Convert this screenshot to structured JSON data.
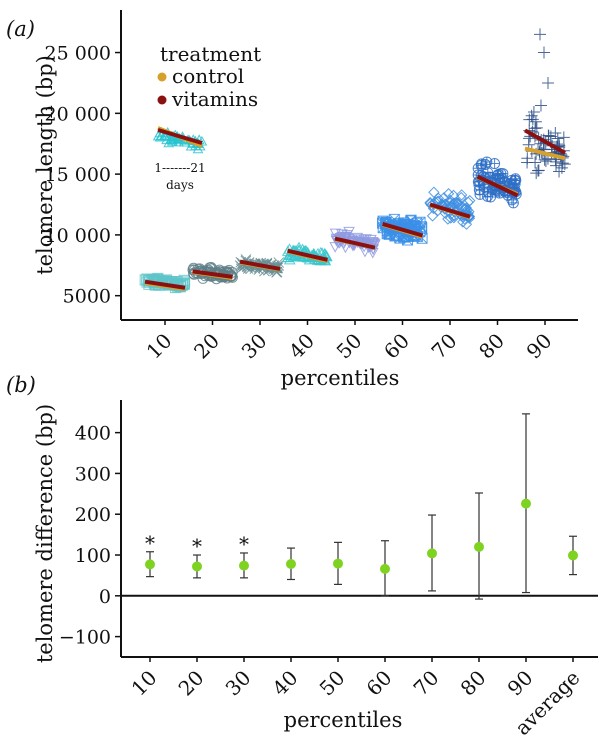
{
  "panels": {
    "a_label": "(a)",
    "b_label": "(b)"
  },
  "colors": {
    "control": "#d7a02a",
    "vitamins": "#8b1010",
    "point": "#7ed321",
    "axis": "#111111"
  },
  "chart_data": [
    {
      "panel": "a",
      "type": "scatter",
      "xlabel": "percentiles",
      "ylabel": "telomere length (bp)",
      "categories": [
        "10",
        "20",
        "30",
        "40",
        "50",
        "60",
        "70",
        "80",
        "90"
      ],
      "yticks": [
        5000,
        10000,
        15000,
        20000,
        25000
      ],
      "ytick_labels": [
        "5000",
        "10 000",
        "15 000",
        "20 000",
        "25 000"
      ],
      "ylim": [
        3000,
        28500
      ],
      "legend": {
        "title": "treatment",
        "entries": [
          "control",
          "vitamins"
        ],
        "inset_xlabel": "1-------21",
        "inset_unit": "days",
        "position": "top-left"
      },
      "x_encoding": "days 1–21 within each percentile group",
      "series": [
        {
          "name": "control",
          "start": [
            6050,
            6950,
            7750,
            8650,
            9650,
            10850,
            12450,
            14750,
            17100
          ],
          "end": [
            5550,
            6450,
            7150,
            7850,
            8950,
            9850,
            11450,
            13350,
            16300
          ]
        },
        {
          "name": "vitamins",
          "start": [
            6150,
            7000,
            7800,
            8700,
            9700,
            10900,
            12500,
            14800,
            18600
          ],
          "end": [
            5650,
            6550,
            7200,
            7950,
            8950,
            9950,
            11500,
            13250,
            16750
          ]
        }
      ],
      "group_markers": [
        "square",
        "circle",
        "cross",
        "triangle",
        "down-triangle",
        "square-x",
        "diamond",
        "circle-plus",
        "plus"
      ],
      "group_colors": [
        "#5fc4c9",
        "#5f7f87",
        "#6a8f95",
        "#3ac6cc",
        "#8f9be0",
        "#3b8fe8",
        "#3e8ee0",
        "#2e6fc5",
        "#2b4e86"
      ],
      "group_spread": [
        [
          5700,
          6700
        ],
        [
          6200,
          7600
        ],
        [
          6800,
          8100
        ],
        [
          7500,
          9200
        ],
        [
          8600,
          10600
        ],
        [
          9200,
          12000
        ],
        [
          10500,
          14200
        ],
        [
          11500,
          16500
        ],
        [
          13000,
          21500
        ]
      ],
      "outliers": [
        26500,
        25000,
        22500
      ]
    },
    {
      "panel": "b",
      "type": "scatter",
      "xlabel": "percentiles",
      "ylabel": "telomere difference (bp)",
      "categories": [
        "10",
        "20",
        "30",
        "40",
        "50",
        "60",
        "70",
        "80",
        "90",
        "average"
      ],
      "values": [
        77,
        72,
        74,
        78,
        79,
        66,
        104,
        120,
        226,
        99
      ],
      "err_low": [
        47,
        44,
        44,
        40,
        28,
        0,
        12,
        -8,
        8,
        52
      ],
      "err_high": [
        108,
        100,
        105,
        117,
        131,
        135,
        198,
        252,
        446,
        146
      ],
      "significance": [
        "*",
        "*",
        "*",
        "",
        "",
        "",
        "",
        "",
        "",
        ""
      ],
      "yticks": [
        -100,
        0,
        100,
        200,
        300,
        400
      ],
      "ytick_labels": [
        "−100",
        "0",
        "100",
        "200",
        "300",
        "400"
      ],
      "ylim": [
        -150,
        480
      ],
      "zero_line": true
    }
  ]
}
